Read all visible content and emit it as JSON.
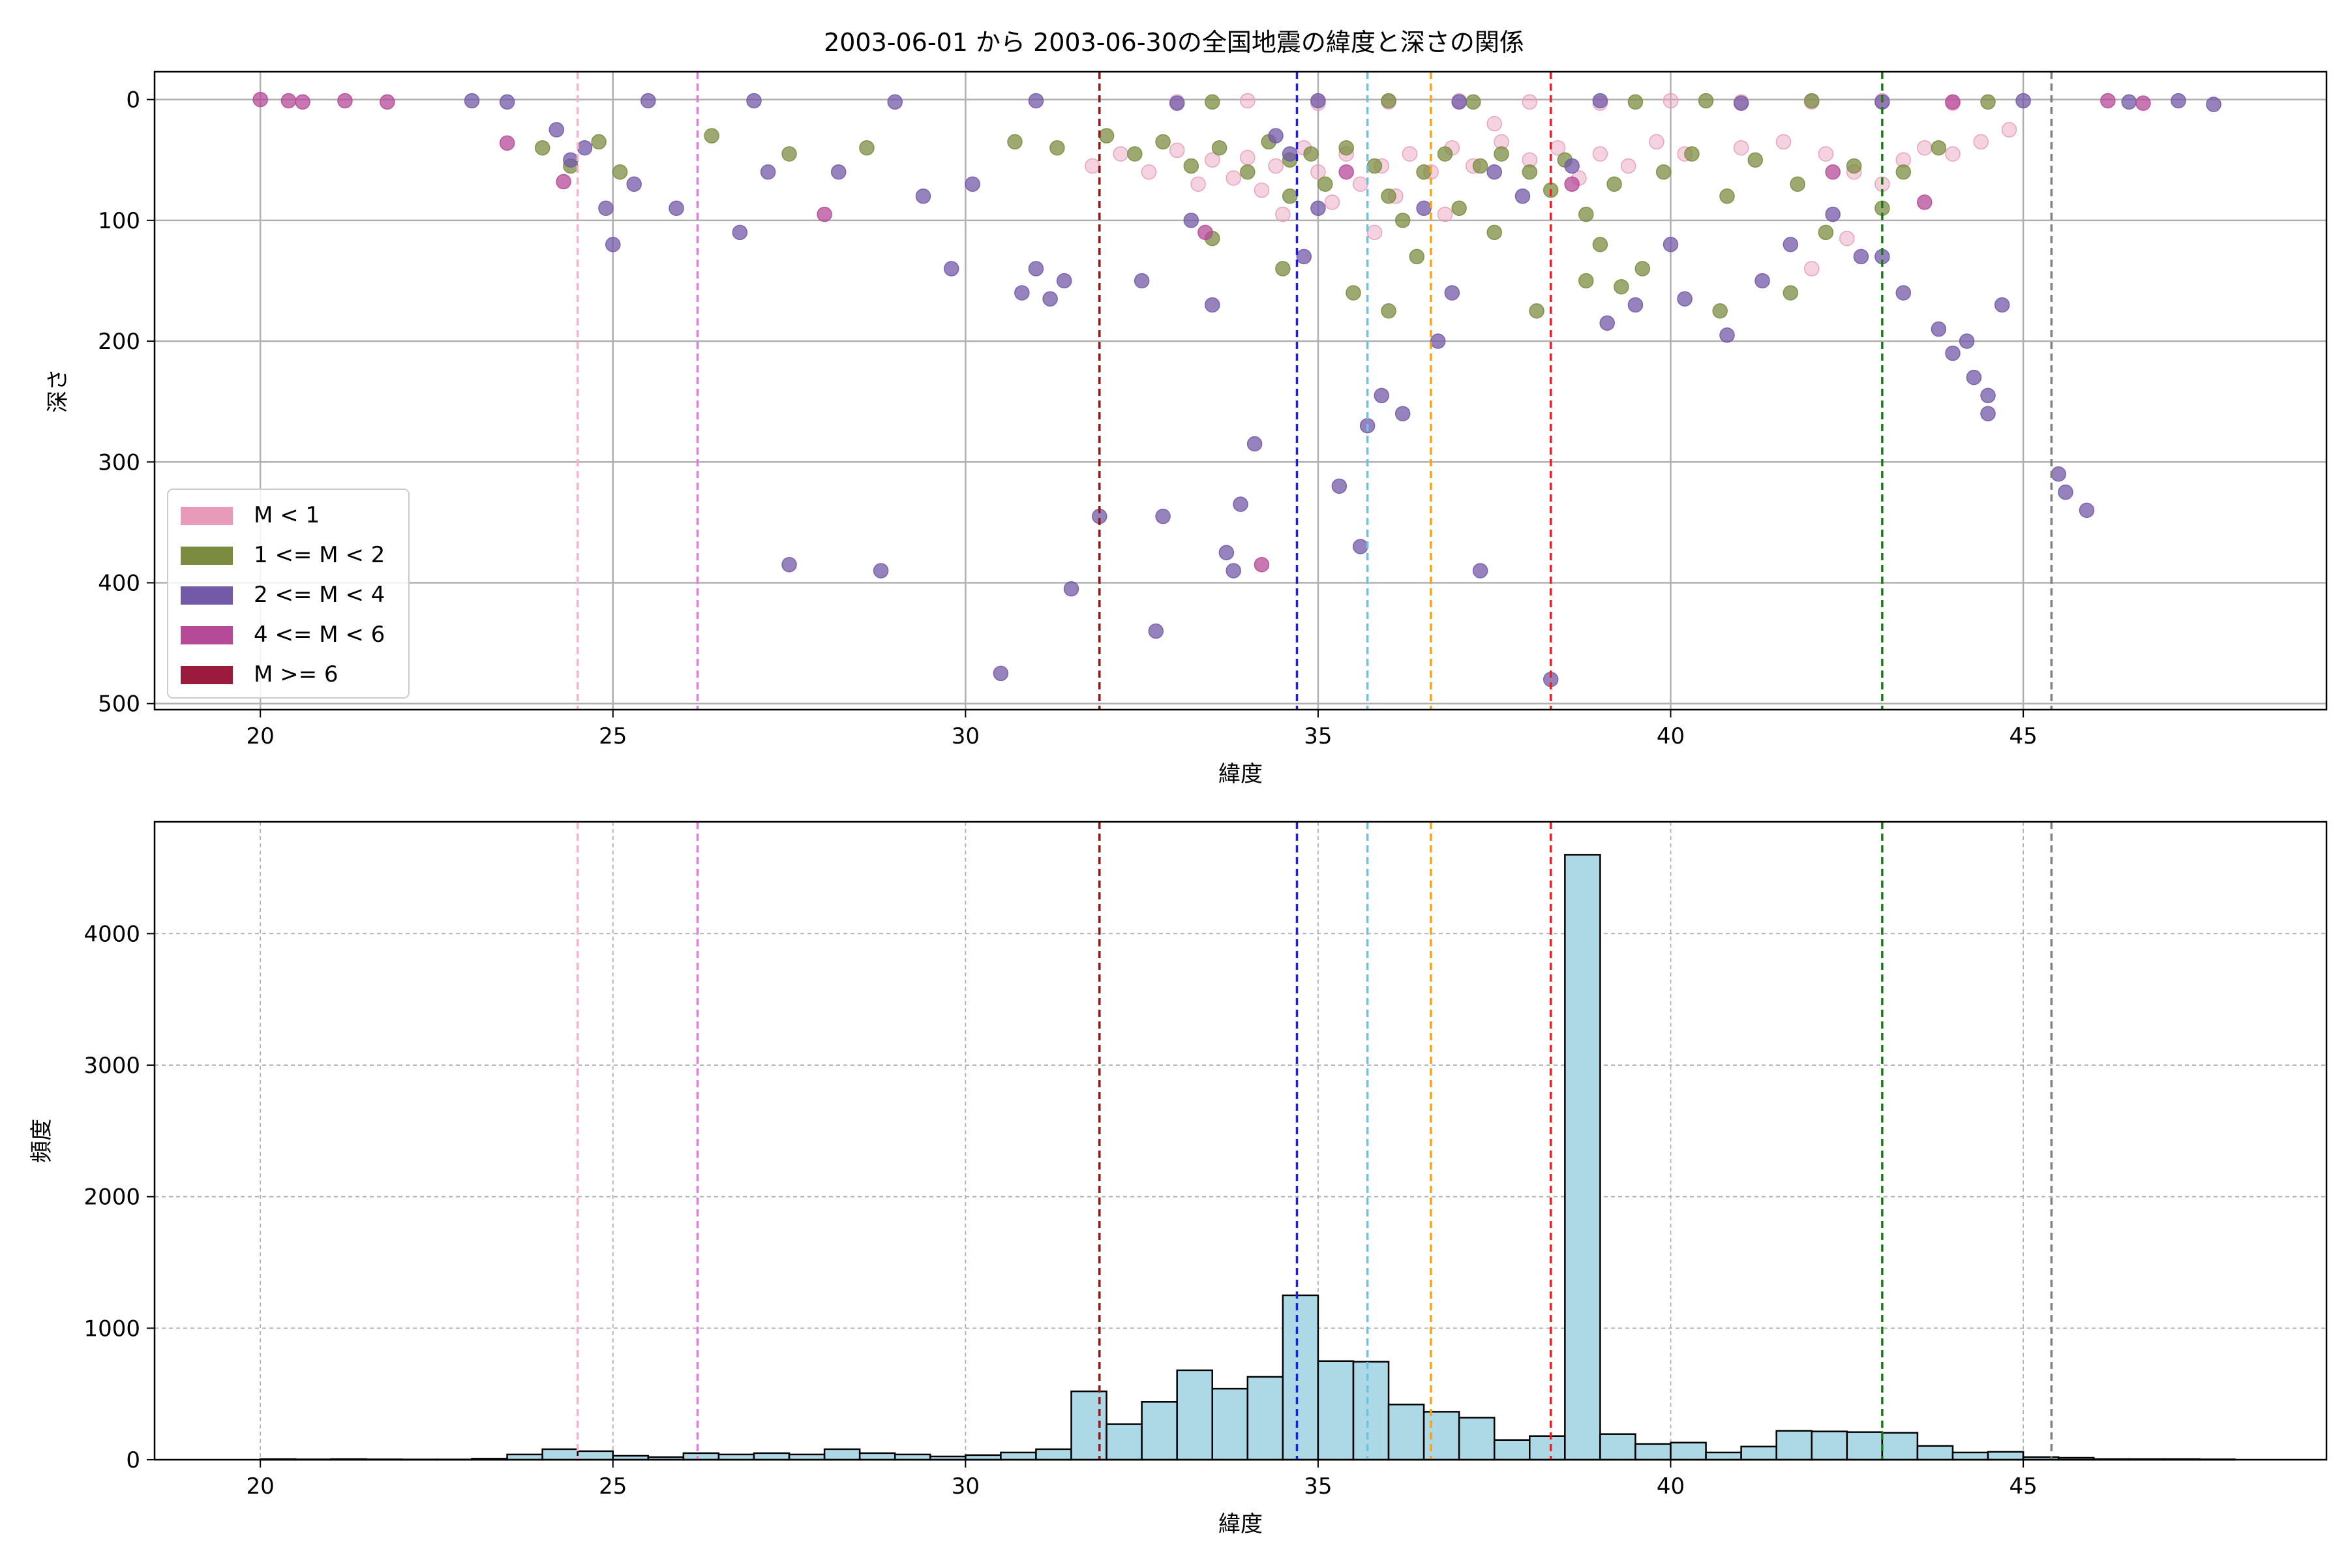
{
  "figure_title": "2003-06-01 から 2003-06-30の全国地震の緯度と深さの関係",
  "chart_data": [
    {
      "type": "scatter",
      "title": "2003-06-01 から 2003-06-30の全国地震の緯度と深さの関係",
      "xlabel": "緯度",
      "ylabel": "深さ",
      "xlim": [
        18.5,
        49.3
      ],
      "ylim": [
        505,
        -23
      ],
      "y_inverted": true,
      "x_ticks": [
        20,
        25,
        30,
        35,
        40,
        45
      ],
      "y_ticks": [
        0,
        100,
        200,
        300,
        400,
        500
      ],
      "grid": true,
      "legend_position": "lower-left",
      "legend": [
        {
          "label": "M < 1",
          "color": "#e89bb8"
        },
        {
          "label": "1 <= M < 2",
          "color": "#7b8c41"
        },
        {
          "label": "2 <= M < 4",
          "color": "#735aa8"
        },
        {
          "label": "4 <= M < 6",
          "color": "#b54a98"
        },
        {
          "label": "M >= 6",
          "color": "#9b1b3f"
        }
      ],
      "reference_lines_x": [
        {
          "x": 24.5,
          "color": "#f4b6c9"
        },
        {
          "x": 26.2,
          "color": "#e07ee0"
        },
        {
          "x": 31.9,
          "color": "#8b1a1a"
        },
        {
          "x": 34.7,
          "color": "#1a1aff"
        },
        {
          "x": 35.7,
          "color": "#66c6ea"
        },
        {
          "x": 36.6,
          "color": "#f5a31a"
        },
        {
          "x": 38.3,
          "color": "#e0252a"
        },
        {
          "x": 43.0,
          "color": "#1a7a1a"
        },
        {
          "x": 45.4,
          "color": "#808080"
        }
      ],
      "series": [
        {
          "name": "M < 1",
          "color": "#e89bb8",
          "points": [
            [
              31.8,
              55
            ],
            [
              32.2,
              45
            ],
            [
              32.6,
              60
            ],
            [
              33.0,
              42
            ],
            [
              33.3,
              70
            ],
            [
              33.5,
              50
            ],
            [
              33.8,
              65
            ],
            [
              34.0,
              48
            ],
            [
              34.2,
              75
            ],
            [
              34.4,
              55
            ],
            [
              34.8,
              40
            ],
            [
              35.0,
              60
            ],
            [
              35.2,
              85
            ],
            [
              35.4,
              45
            ],
            [
              35.6,
              70
            ],
            [
              35.9,
              55
            ],
            [
              36.1,
              80
            ],
            [
              36.3,
              45
            ],
            [
              36.6,
              60
            ],
            [
              36.9,
              40
            ],
            [
              37.2,
              55
            ],
            [
              37.6,
              35
            ],
            [
              38.0,
              50
            ],
            [
              38.4,
              40
            ],
            [
              38.7,
              65
            ],
            [
              39.0,
              45
            ],
            [
              39.4,
              55
            ],
            [
              39.8,
              35
            ],
            [
              40.2,
              45
            ],
            [
              41.0,
              40
            ],
            [
              41.6,
              35
            ],
            [
              42.2,
              45
            ],
            [
              42.6,
              60
            ],
            [
              43.0,
              70
            ],
            [
              43.3,
              50
            ],
            [
              43.6,
              40
            ],
            [
              44.0,
              45
            ],
            [
              44.4,
              35
            ],
            [
              44.8,
              25
            ],
            [
              33.0,
              2
            ],
            [
              34.0,
              1
            ],
            [
              35.0,
              3
            ],
            [
              36.0,
              2
            ],
            [
              37.0,
              1
            ],
            [
              38.0,
              2
            ],
            [
              39.0,
              3
            ],
            [
              40.0,
              1
            ],
            [
              41.0,
              2
            ],
            [
              42.0,
              2
            ],
            [
              43.0,
              1
            ],
            [
              44.0,
              3
            ],
            [
              37.5,
              20
            ],
            [
              36.8,
              95
            ],
            [
              42.5,
              115
            ],
            [
              42.0,
              140
            ],
            [
              34.5,
              95
            ],
            [
              35.8,
              110
            ]
          ]
        },
        {
          "name": "1 <= M < 2",
          "color": "#7b8c41",
          "points": [
            [
              24.0,
              40
            ],
            [
              24.4,
              55
            ],
            [
              24.8,
              35
            ],
            [
              25.1,
              60
            ],
            [
              26.4,
              30
            ],
            [
              27.5,
              45
            ],
            [
              28.6,
              40
            ],
            [
              30.7,
              35
            ],
            [
              31.3,
              40
            ],
            [
              32.0,
              30
            ],
            [
              32.4,
              45
            ],
            [
              32.8,
              35
            ],
            [
              33.2,
              55
            ],
            [
              33.6,
              40
            ],
            [
              34.0,
              60
            ],
            [
              34.3,
              35
            ],
            [
              34.6,
              50
            ],
            [
              34.9,
              45
            ],
            [
              35.1,
              70
            ],
            [
              35.4,
              40
            ],
            [
              35.8,
              55
            ],
            [
              36.0,
              80
            ],
            [
              36.2,
              100
            ],
            [
              36.5,
              60
            ],
            [
              36.8,
              45
            ],
            [
              37.0,
              90
            ],
            [
              37.3,
              55
            ],
            [
              37.6,
              45
            ],
            [
              38.0,
              60
            ],
            [
              38.3,
              75
            ],
            [
              38.5,
              50
            ],
            [
              38.8,
              95
            ],
            [
              39.0,
              120
            ],
            [
              39.2,
              70
            ],
            [
              39.6,
              140
            ],
            [
              39.9,
              60
            ],
            [
              40.3,
              45
            ],
            [
              40.8,
              80
            ],
            [
              41.2,
              50
            ],
            [
              41.8,
              70
            ],
            [
              42.2,
              110
            ],
            [
              42.6,
              55
            ],
            [
              43.0,
              90
            ],
            [
              43.3,
              60
            ],
            [
              43.8,
              40
            ],
            [
              34.5,
              140
            ],
            [
              35.5,
              160
            ],
            [
              36.0,
              175
            ],
            [
              38.1,
              175
            ],
            [
              39.3,
              155
            ],
            [
              40.7,
              175
            ],
            [
              41.7,
              160
            ],
            [
              33.5,
              115
            ],
            [
              37.5,
              110
            ],
            [
              38.8,
              150
            ],
            [
              34.6,
              80
            ],
            [
              36.4,
              130
            ],
            [
              42.0,
              1
            ],
            [
              39.5,
              2
            ],
            [
              36.0,
              1
            ],
            [
              33.5,
              2
            ],
            [
              40.5,
              1
            ],
            [
              44.5,
              2
            ],
            [
              37.2,
              2
            ]
          ]
        },
        {
          "name": "2 <= M < 4",
          "color": "#735aa8",
          "points": [
            [
              23.0,
              1
            ],
            [
              23.5,
              2
            ],
            [
              24.2,
              25
            ],
            [
              24.4,
              50
            ],
            [
              24.6,
              40
            ],
            [
              24.9,
              90
            ],
            [
              25.0,
              120
            ],
            [
              25.3,
              70
            ],
            [
              25.9,
              90
            ],
            [
              26.8,
              110
            ],
            [
              27.2,
              60
            ],
            [
              27.5,
              385
            ],
            [
              28.2,
              60
            ],
            [
              28.8,
              390
            ],
            [
              29.4,
              80
            ],
            [
              29.8,
              140
            ],
            [
              30.1,
              70
            ],
            [
              30.5,
              475
            ],
            [
              30.8,
              160
            ],
            [
              31.0,
              140
            ],
            [
              31.2,
              165
            ],
            [
              31.4,
              150
            ],
            [
              31.5,
              405
            ],
            [
              31.9,
              345
            ],
            [
              32.5,
              150
            ],
            [
              32.7,
              440
            ],
            [
              32.8,
              345
            ],
            [
              33.2,
              100
            ],
            [
              33.5,
              170
            ],
            [
              33.7,
              375
            ],
            [
              33.8,
              390
            ],
            [
              33.9,
              335
            ],
            [
              34.1,
              285
            ],
            [
              34.4,
              30
            ],
            [
              34.6,
              45
            ],
            [
              35.0,
              90
            ],
            [
              35.3,
              320
            ],
            [
              35.6,
              370
            ],
            [
              35.7,
              270
            ],
            [
              35.9,
              245
            ],
            [
              36.2,
              260
            ],
            [
              36.5,
              90
            ],
            [
              36.7,
              200
            ],
            [
              37.3,
              390
            ],
            [
              37.5,
              60
            ],
            [
              37.9,
              80
            ],
            [
              38.3,
              480
            ],
            [
              38.6,
              55
            ],
            [
              39.1,
              185
            ],
            [
              39.5,
              170
            ],
            [
              40.2,
              165
            ],
            [
              40.8,
              195
            ],
            [
              41.3,
              150
            ],
            [
              41.7,
              120
            ],
            [
              42.3,
              95
            ],
            [
              42.7,
              130
            ],
            [
              43.3,
              160
            ],
            [
              43.8,
              190
            ],
            [
              44.0,
              210
            ],
            [
              44.3,
              230
            ],
            [
              44.5,
              260
            ],
            [
              44.5,
              245
            ],
            [
              44.7,
              170
            ],
            [
              45.5,
              310
            ],
            [
              45.6,
              325
            ],
            [
              45.9,
              340
            ],
            [
              46.5,
              2
            ],
            [
              47.2,
              1
            ],
            [
              47.7,
              4
            ],
            [
              25.5,
              1
            ],
            [
              27.0,
              1
            ],
            [
              29.0,
              2
            ],
            [
              31.0,
              1
            ],
            [
              33.0,
              3
            ],
            [
              35.0,
              1
            ],
            [
              37.0,
              2
            ],
            [
              39.0,
              1
            ],
            [
              41.0,
              3
            ],
            [
              43.0,
              2
            ],
            [
              45.0,
              1
            ],
            [
              34.8,
              130
            ],
            [
              36.9,
              160
            ],
            [
              40.0,
              120
            ],
            [
              43.0,
              130
            ],
            [
              44.2,
              200
            ]
          ]
        },
        {
          "name": "4 <= M < 6",
          "color": "#b54a98",
          "points": [
            [
              20.0,
              0
            ],
            [
              20.4,
              1
            ],
            [
              20.6,
              2
            ],
            [
              21.2,
              1
            ],
            [
              21.8,
              2
            ],
            [
              23.5,
              36
            ],
            [
              24.3,
              68
            ],
            [
              28.0,
              95
            ],
            [
              33.4,
              110
            ],
            [
              34.2,
              385
            ],
            [
              35.4,
              60
            ],
            [
              38.6,
              70
            ],
            [
              43.6,
              85
            ],
            [
              44.0,
              2
            ],
            [
              46.2,
              1
            ],
            [
              46.7,
              3
            ],
            [
              42.3,
              60
            ]
          ]
        },
        {
          "name": "M >= 6",
          "color": "#9b1b3f",
          "points": []
        }
      ]
    },
    {
      "type": "bar",
      "title": "",
      "xlabel": "緯度",
      "ylabel": "頻度",
      "xlim": [
        18.5,
        49.3
      ],
      "ylim": [
        0,
        4850
      ],
      "x_ticks": [
        20,
        25,
        30,
        35,
        40,
        45
      ],
      "y_ticks": [
        0,
        1000,
        2000,
        3000,
        4000
      ],
      "grid": true,
      "bar_color": "#add8e6",
      "edge_color": "#000000",
      "bin_width": 0.5,
      "bins_start": [
        20.0,
        20.5,
        21.0,
        21.5,
        22.0,
        22.5,
        23.0,
        23.5,
        24.0,
        24.5,
        25.0,
        25.5,
        26.0,
        26.5,
        27.0,
        27.5,
        28.0,
        28.5,
        29.0,
        29.5,
        30.0,
        30.5,
        31.0,
        31.5,
        32.0,
        32.5,
        33.0,
        33.5,
        34.0,
        34.5,
        35.0,
        35.5,
        36.0,
        36.5,
        37.0,
        37.5,
        38.0,
        38.5,
        39.0,
        39.5,
        40.0,
        40.5,
        41.0,
        41.5,
        42.0,
        42.5,
        43.0,
        43.5,
        44.0,
        44.5,
        45.0,
        45.5,
        46.0,
        46.5,
        47.0,
        47.5
      ],
      "values": [
        5,
        3,
        5,
        3,
        2,
        2,
        8,
        40,
        80,
        65,
        30,
        20,
        50,
        40,
        50,
        40,
        80,
        50,
        40,
        25,
        35,
        55,
        80,
        520,
        270,
        440,
        680,
        540,
        630,
        1250,
        750,
        745,
        420,
        365,
        320,
        150,
        180,
        4600,
        195,
        120,
        130,
        55,
        100,
        220,
        215,
        210,
        205,
        105,
        55,
        60,
        20,
        15,
        5,
        5,
        5,
        3
      ],
      "reference_lines_x": [
        {
          "x": 24.5,
          "color": "#f4b6c9"
        },
        {
          "x": 26.2,
          "color": "#e07ee0"
        },
        {
          "x": 31.9,
          "color": "#8b1a1a"
        },
        {
          "x": 34.7,
          "color": "#1a1aff"
        },
        {
          "x": 35.7,
          "color": "#66c6ea"
        },
        {
          "x": 36.6,
          "color": "#f5a31a"
        },
        {
          "x": 38.3,
          "color": "#e0252a"
        },
        {
          "x": 43.0,
          "color": "#1a7a1a"
        },
        {
          "x": 45.4,
          "color": "#808080"
        }
      ]
    }
  ]
}
